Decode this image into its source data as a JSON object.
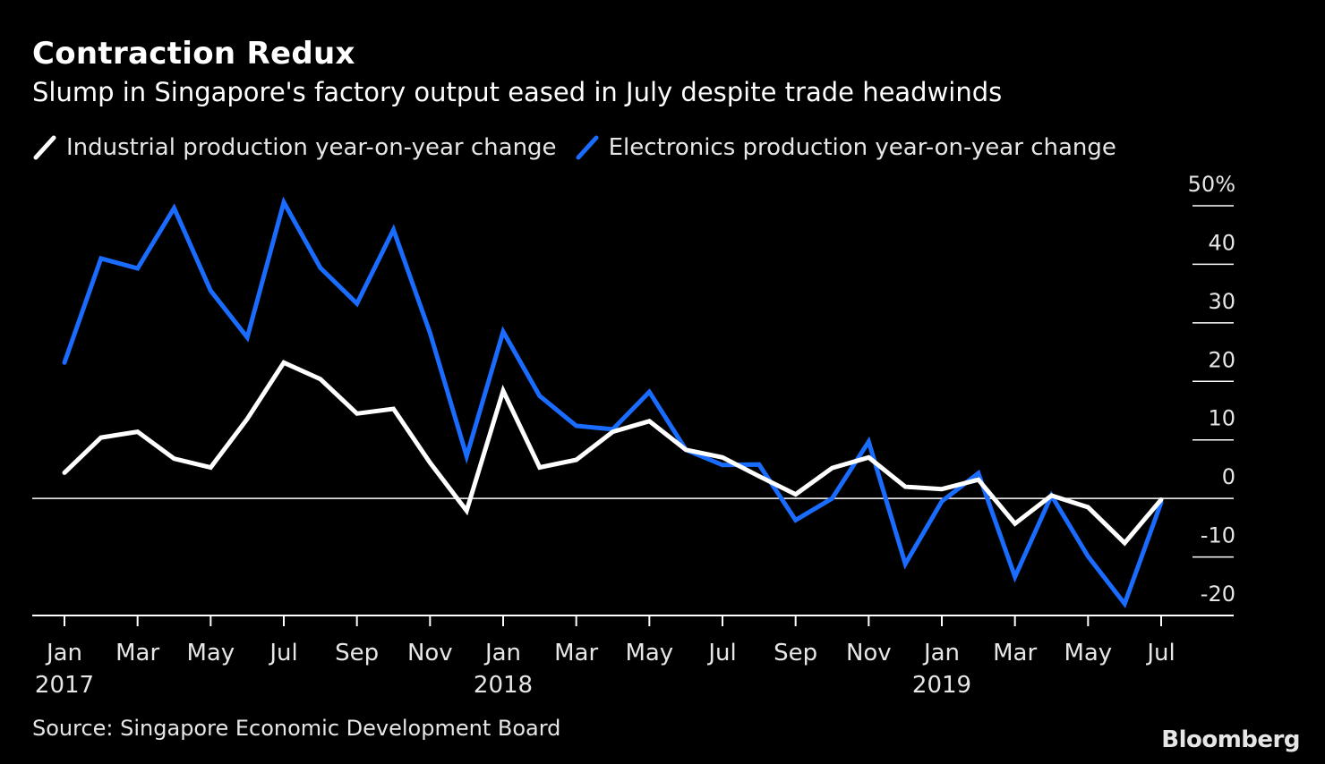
{
  "chart_data": {
    "type": "line",
    "title": "Contraction Redux",
    "subtitle": "Slump in Singapore's factory output eased in July despite trade headwinds",
    "source": "Source: Singapore Economic Development Board",
    "brand": "Bloomberg",
    "ylim": [
      -20,
      50
    ],
    "y_ticks": [
      "50%",
      "40",
      "30",
      "20",
      "10",
      "0",
      "-10",
      "-20"
    ],
    "y_tick_values": [
      50,
      40,
      30,
      20,
      10,
      0,
      -10,
      -20
    ],
    "x_tick_labels": [
      {
        "month": "Jan",
        "year": "2017",
        "index": 0
      },
      {
        "month": "Mar",
        "year": "",
        "index": 2
      },
      {
        "month": "May",
        "year": "",
        "index": 4
      },
      {
        "month": "Jul",
        "year": "",
        "index": 6
      },
      {
        "month": "Sep",
        "year": "",
        "index": 8
      },
      {
        "month": "Nov",
        "year": "",
        "index": 10
      },
      {
        "month": "Jan",
        "year": "2018",
        "index": 12
      },
      {
        "month": "Mar",
        "year": "",
        "index": 14
      },
      {
        "month": "May",
        "year": "",
        "index": 16
      },
      {
        "month": "Jul",
        "year": "",
        "index": 18
      },
      {
        "month": "Sep",
        "year": "",
        "index": 20
      },
      {
        "month": "Nov",
        "year": "",
        "index": 22
      },
      {
        "month": "Jan",
        "year": "2019",
        "index": 24
      },
      {
        "month": "Mar",
        "year": "",
        "index": 26
      },
      {
        "month": "May",
        "year": "",
        "index": 28
      },
      {
        "month": "Jul",
        "year": "",
        "index": 30
      }
    ],
    "x": [
      "Jan 2017",
      "Feb 2017",
      "Mar 2017",
      "Apr 2017",
      "May 2017",
      "Jun 2017",
      "Jul 2017",
      "Aug 2017",
      "Sep 2017",
      "Oct 2017",
      "Nov 2017",
      "Dec 2017",
      "Jan 2018",
      "Feb 2018",
      "Mar 2018",
      "Apr 2018",
      "May 2018",
      "Jun 2018",
      "Jul 2018",
      "Aug 2018",
      "Sep 2018",
      "Oct 2018",
      "Nov 2018",
      "Dec 2018",
      "Jan 2019",
      "Feb 2019",
      "Mar 2019",
      "Apr 2019",
      "May 2019",
      "Jun 2019",
      "Jul 2019"
    ],
    "series": [
      {
        "name": "Industrial production year-on-year change",
        "color": "#ffffff",
        "values": [
          4.4,
          10.4,
          11.4,
          6.8,
          5.3,
          13.6,
          23.2,
          20.4,
          14.5,
          15.3,
          6.1,
          -2.1,
          18.4,
          5.3,
          6.6,
          11.4,
          13.2,
          8.3,
          7.0,
          3.8,
          0.7,
          5.2,
          7.0,
          2.0,
          1.6,
          3.2,
          -4.3,
          0.5,
          -1.5,
          -7.6,
          -0.2
        ]
      },
      {
        "name": "Electronics production year-on-year change",
        "color": "#1a6cff",
        "values": [
          23.2,
          41.0,
          39.3,
          49.6,
          35.5,
          27.5,
          50.6,
          39.4,
          33.3,
          45.9,
          28.3,
          7.2,
          28.5,
          17.5,
          12.4,
          11.8,
          18.2,
          8.3,
          5.7,
          5.8,
          -3.7,
          0.0,
          9.7,
          -11.2,
          -0.5,
          4.3,
          -13.4,
          0.5,
          -9.9,
          -18.0,
          -0.7
        ]
      }
    ]
  }
}
